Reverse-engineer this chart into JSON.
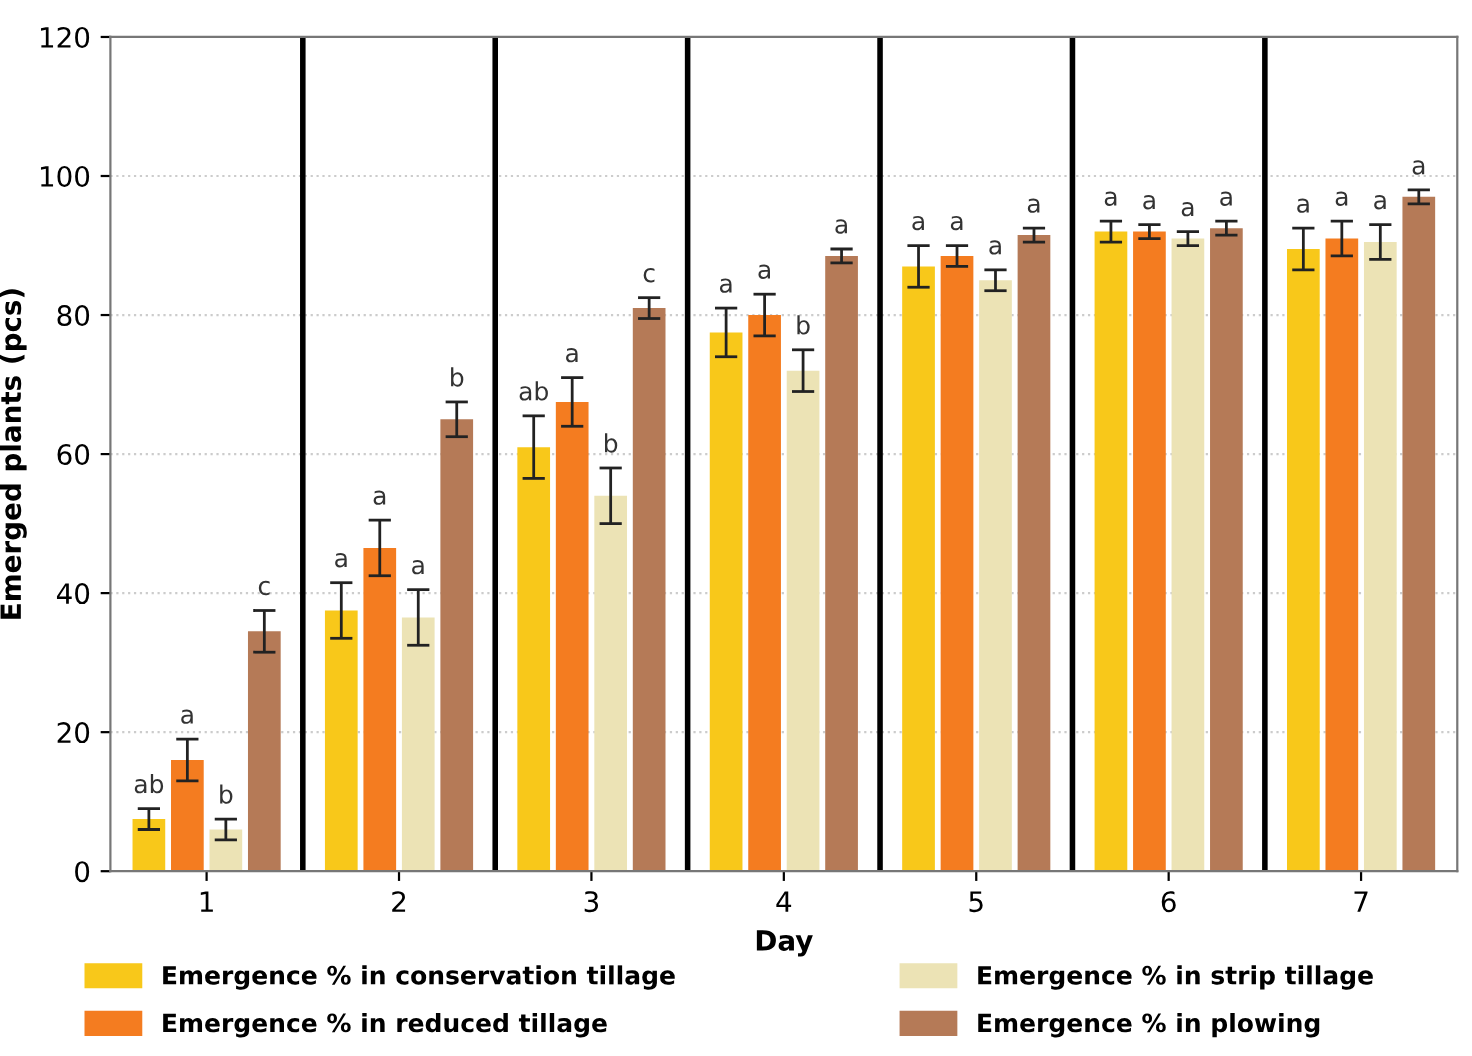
{
  "chart_data": {
    "type": "bar",
    "xlabel": "Day",
    "ylabel": "Emerged plants (pcs)",
    "categories": [
      "1",
      "2",
      "3",
      "4",
      "5",
      "6",
      "7"
    ],
    "series": [
      {
        "name": "Emergence % in conservation tillage",
        "color": "#f8c81a",
        "values": [
          7.5,
          37.5,
          61,
          77.5,
          87,
          92,
          89.5
        ],
        "errors": [
          1.5,
          4,
          4.5,
          3.5,
          3,
          1.5,
          3
        ],
        "value_labels": [
          "ab",
          "a",
          "ab",
          "a",
          "a",
          "a",
          "a"
        ]
      },
      {
        "name": "Emergence % in reduced tillage",
        "color": "#f47c20",
        "values": [
          16,
          46.5,
          67.5,
          80,
          88.5,
          92,
          91
        ],
        "errors": [
          3,
          4,
          3.5,
          3,
          1.5,
          1,
          2.5
        ],
        "value_labels": [
          "a",
          "a",
          "a",
          "a",
          "a",
          "a",
          "a"
        ]
      },
      {
        "name": "Emergence % in strip tillage",
        "color": "#ece3b5",
        "values": [
          6,
          36.5,
          54,
          72,
          85,
          91,
          90.5
        ],
        "errors": [
          1.5,
          4,
          4,
          3,
          1.5,
          1,
          2.5
        ],
        "value_labels": [
          "b",
          "a",
          "b",
          "b",
          "a",
          "a",
          "a"
        ]
      },
      {
        "name": "Emergence % in plowing",
        "color": "#b57a57",
        "values": [
          34.5,
          65,
          81,
          88.5,
          91.5,
          92.5,
          97
        ],
        "errors": [
          3,
          2.5,
          1.5,
          1,
          1,
          1,
          1
        ],
        "value_labels": [
          "c",
          "b",
          "c",
          "a",
          "a",
          "a",
          "a"
        ]
      }
    ],
    "ylim": [
      0,
      120
    ],
    "yticks": [
      0,
      20,
      40,
      60,
      80,
      100,
      120
    ],
    "grid": "y",
    "legend": "bottom"
  }
}
